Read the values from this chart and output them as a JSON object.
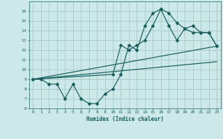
{
  "xlabel": "Humidex (Indice chaleur)",
  "bg_color": "#cce8e8",
  "grid_color": "#aacccc",
  "line_color": "#1a6060",
  "xlim": [
    -0.5,
    23.5
  ],
  "ylim": [
    6,
    17
  ],
  "xticks": [
    0,
    1,
    2,
    3,
    4,
    5,
    6,
    7,
    8,
    9,
    10,
    11,
    12,
    13,
    14,
    15,
    16,
    17,
    18,
    19,
    20,
    21,
    22,
    23
  ],
  "yticks": [
    6,
    7,
    8,
    9,
    10,
    11,
    12,
    13,
    14,
    15,
    16
  ],
  "line1_x": [
    0,
    1,
    2,
    3,
    4,
    5,
    6,
    7,
    8,
    9,
    10,
    11,
    12,
    13,
    14,
    15,
    16,
    17,
    18,
    19,
    20,
    21,
    22,
    23
  ],
  "line1_y": [
    9.0,
    9.0,
    8.5,
    8.5,
    7.0,
    8.5,
    7.0,
    6.5,
    6.5,
    7.5,
    8.0,
    9.5,
    12.5,
    12.0,
    14.5,
    15.8,
    16.2,
    15.8,
    14.8,
    14.2,
    13.8,
    13.8,
    13.8,
    12.4
  ],
  "line2_x": [
    0,
    10,
    11,
    12,
    13,
    14,
    15,
    16,
    17,
    18,
    19,
    20,
    21,
    22,
    23
  ],
  "line2_y": [
    9.0,
    9.5,
    12.5,
    12.0,
    12.5,
    13.0,
    14.5,
    16.2,
    14.5,
    13.0,
    14.2,
    14.5,
    13.8,
    13.8,
    12.4
  ],
  "line3_x": [
    0,
    23
  ],
  "line3_y": [
    9.0,
    12.4
  ],
  "line4_x": [
    0,
    23
  ],
  "line4_y": [
    9.0,
    10.8
  ]
}
